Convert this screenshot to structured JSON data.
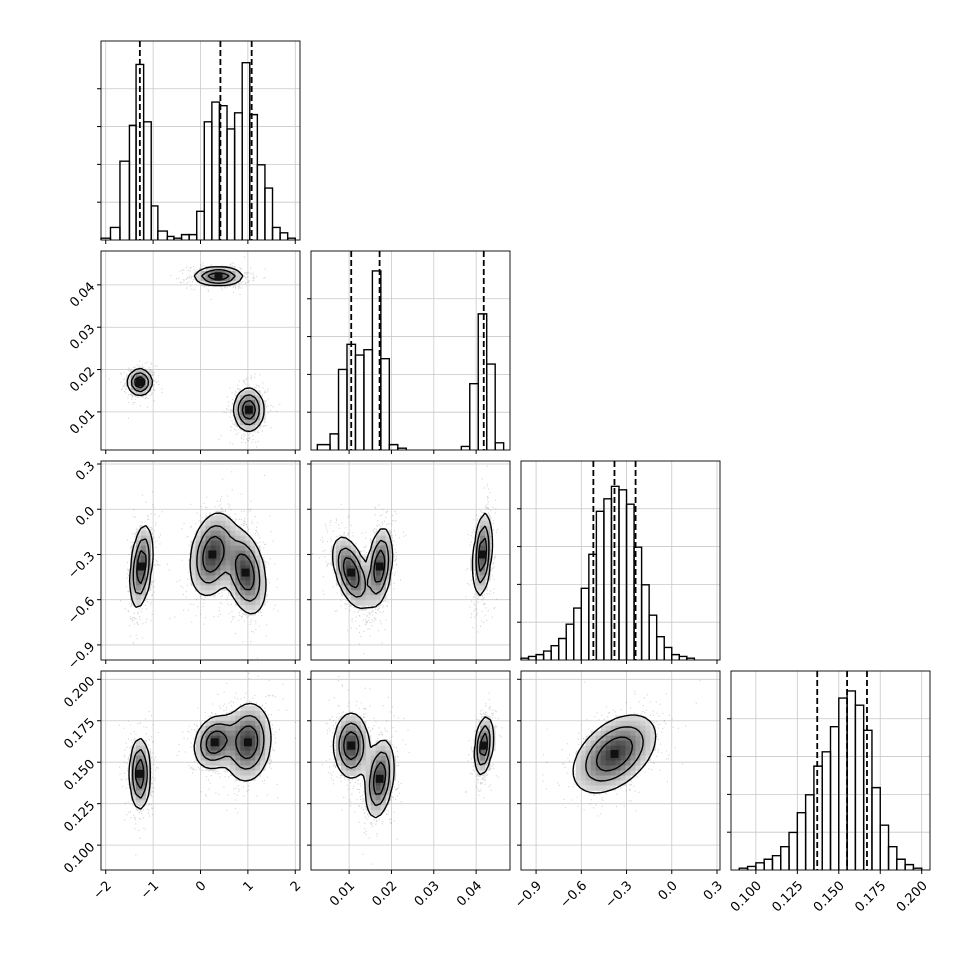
{
  "chart_data": {
    "type": "corner",
    "grid": true,
    "parameters": [
      {
        "id": "p1",
        "range": [
          -2.1,
          2.1
        ],
        "ticks": [
          -2,
          -1,
          0,
          1,
          2
        ],
        "tick_labels": [
          "−2",
          "−1",
          "0",
          "1",
          "2"
        ],
        "quantile_lines": [
          -1.28,
          0.42,
          1.08
        ],
        "hist": [
          {
            "x0": -2.1,
            "x1": -1.9,
            "v": 0.01
          },
          {
            "x0": -1.9,
            "x1": -1.7,
            "v": 0.07
          },
          {
            "x0": -1.7,
            "x1": -1.5,
            "v": 0.44
          },
          {
            "x0": -1.5,
            "x1": -1.36,
            "v": 0.64
          },
          {
            "x0": -1.36,
            "x1": -1.2,
            "v": 0.98
          },
          {
            "x0": -1.2,
            "x1": -1.04,
            "v": 0.66
          },
          {
            "x0": -1.04,
            "x1": -0.9,
            "v": 0.19
          },
          {
            "x0": -0.9,
            "x1": -0.7,
            "v": 0.05
          },
          {
            "x0": -0.7,
            "x1": -0.56,
            "v": 0.02
          },
          {
            "x0": -0.56,
            "x1": -0.4,
            "v": 0.01
          },
          {
            "x0": -0.4,
            "x1": -0.24,
            "v": 0.03
          },
          {
            "x0": -0.24,
            "x1": -0.08,
            "v": 0.03
          },
          {
            "x0": -0.08,
            "x1": 0.08,
            "v": 0.16
          },
          {
            "x0": 0.08,
            "x1": 0.24,
            "v": 0.66
          },
          {
            "x0": 0.24,
            "x1": 0.4,
            "v": 0.77
          },
          {
            "x0": 0.4,
            "x1": 0.56,
            "v": 0.75
          },
          {
            "x0": 0.56,
            "x1": 0.72,
            "v": 0.62
          },
          {
            "x0": 0.72,
            "x1": 0.88,
            "v": 0.71
          },
          {
            "x0": 0.88,
            "x1": 1.04,
            "v": 0.99
          },
          {
            "x0": 1.04,
            "x1": 1.2,
            "v": 0.7
          },
          {
            "x0": 1.2,
            "x1": 1.36,
            "v": 0.42
          },
          {
            "x0": 1.36,
            "x1": 1.52,
            "v": 0.29
          },
          {
            "x0": 1.52,
            "x1": 1.68,
            "v": 0.07
          },
          {
            "x0": 1.68,
            "x1": 1.84,
            "v": 0.04
          },
          {
            "x0": 1.84,
            "x1": 2.0,
            "v": 0.01
          }
        ]
      },
      {
        "id": "p2",
        "range": [
          0.001,
          0.048
        ],
        "ticks": [
          0.01,
          0.02,
          0.03,
          0.04
        ],
        "tick_labels": [
          "0.01",
          "0.02",
          "0.03",
          "0.04"
        ],
        "quantile_lines": [
          0.0105,
          0.0172,
          0.0418
        ],
        "hist": [
          {
            "x0": 0.0025,
            "x1": 0.0055,
            "v": 0.03
          },
          {
            "x0": 0.0055,
            "x1": 0.0075,
            "v": 0.09
          },
          {
            "x0": 0.0075,
            "x1": 0.0095,
            "v": 0.45
          },
          {
            "x0": 0.0095,
            "x1": 0.0115,
            "v": 0.59
          },
          {
            "x0": 0.0115,
            "x1": 0.0135,
            "v": 0.53
          },
          {
            "x0": 0.0135,
            "x1": 0.0155,
            "v": 0.56
          },
          {
            "x0": 0.0155,
            "x1": 0.0175,
            "v": 1.0
          },
          {
            "x0": 0.0175,
            "x1": 0.0195,
            "v": 0.51
          },
          {
            "x0": 0.0195,
            "x1": 0.0215,
            "v": 0.03
          },
          {
            "x0": 0.0215,
            "x1": 0.0235,
            "v": 0.01
          },
          {
            "x0": 0.0365,
            "x1": 0.0385,
            "v": 0.02
          },
          {
            "x0": 0.0385,
            "x1": 0.0405,
            "v": 0.37
          },
          {
            "x0": 0.0405,
            "x1": 0.0425,
            "v": 0.76
          },
          {
            "x0": 0.0425,
            "x1": 0.0445,
            "v": 0.48
          },
          {
            "x0": 0.0445,
            "x1": 0.0465,
            "v": 0.04
          }
        ]
      },
      {
        "id": "p3",
        "range": [
          -1.0,
          0.32
        ],
        "ticks": [
          -0.9,
          -0.6,
          -0.3,
          0.0,
          0.3
        ],
        "tick_labels": [
          "−0.9",
          "−0.6",
          "−0.3",
          "0.0",
          "0.3"
        ],
        "quantile_lines": [
          -0.52,
          -0.38,
          -0.24
        ],
        "hist": [
          {
            "x0": -1.0,
            "x1": -0.95,
            "v": 0.01
          },
          {
            "x0": -0.95,
            "x1": -0.9,
            "v": 0.02
          },
          {
            "x0": -0.9,
            "x1": -0.85,
            "v": 0.03
          },
          {
            "x0": -0.85,
            "x1": -0.8,
            "v": 0.05
          },
          {
            "x0": -0.8,
            "x1": -0.75,
            "v": 0.08
          },
          {
            "x0": -0.75,
            "x1": -0.7,
            "v": 0.12
          },
          {
            "x0": -0.7,
            "x1": -0.65,
            "v": 0.2
          },
          {
            "x0": -0.65,
            "x1": -0.6,
            "v": 0.29
          },
          {
            "x0": -0.6,
            "x1": -0.55,
            "v": 0.4
          },
          {
            "x0": -0.55,
            "x1": -0.5,
            "v": 0.59
          },
          {
            "x0": -0.5,
            "x1": -0.45,
            "v": 0.83
          },
          {
            "x0": -0.45,
            "x1": -0.4,
            "v": 0.9
          },
          {
            "x0": -0.4,
            "x1": -0.35,
            "v": 0.97
          },
          {
            "x0": -0.35,
            "x1": -0.3,
            "v": 0.95
          },
          {
            "x0": -0.3,
            "x1": -0.25,
            "v": 0.87
          },
          {
            "x0": -0.25,
            "x1": -0.2,
            "v": 0.63
          },
          {
            "x0": -0.2,
            "x1": -0.15,
            "v": 0.42
          },
          {
            "x0": -0.15,
            "x1": -0.1,
            "v": 0.25
          },
          {
            "x0": -0.1,
            "x1": -0.05,
            "v": 0.13
          },
          {
            "x0": -0.05,
            "x1": 0.0,
            "v": 0.07
          },
          {
            "x0": 0.0,
            "x1": 0.05,
            "v": 0.03
          },
          {
            "x0": 0.05,
            "x1": 0.1,
            "v": 0.02
          },
          {
            "x0": 0.1,
            "x1": 0.15,
            "v": 0.01
          }
        ]
      },
      {
        "id": "p4",
        "range": [
          0.085,
          0.205
        ],
        "ticks": [
          0.1,
          0.125,
          0.15,
          0.175,
          0.2
        ],
        "tick_labels": [
          "0.100",
          "0.125",
          "0.150",
          "0.175",
          "0.200"
        ],
        "quantile_lines": [
          0.137,
          0.155,
          0.167
        ],
        "hist": [
          {
            "x0": 0.09,
            "x1": 0.095,
            "v": 0.01
          },
          {
            "x0": 0.095,
            "x1": 0.1,
            "v": 0.02
          },
          {
            "x0": 0.1,
            "x1": 0.105,
            "v": 0.04
          },
          {
            "x0": 0.105,
            "x1": 0.11,
            "v": 0.06
          },
          {
            "x0": 0.11,
            "x1": 0.115,
            "v": 0.08
          },
          {
            "x0": 0.115,
            "x1": 0.12,
            "v": 0.13
          },
          {
            "x0": 0.12,
            "x1": 0.125,
            "v": 0.21
          },
          {
            "x0": 0.125,
            "x1": 0.13,
            "v": 0.32
          },
          {
            "x0": 0.13,
            "x1": 0.135,
            "v": 0.42
          },
          {
            "x0": 0.135,
            "x1": 0.14,
            "v": 0.58
          },
          {
            "x0": 0.14,
            "x1": 0.145,
            "v": 0.66
          },
          {
            "x0": 0.145,
            "x1": 0.15,
            "v": 0.8
          },
          {
            "x0": 0.15,
            "x1": 0.155,
            "v": 0.96
          },
          {
            "x0": 0.155,
            "x1": 0.16,
            "v": 1.0
          },
          {
            "x0": 0.16,
            "x1": 0.165,
            "v": 0.92
          },
          {
            "x0": 0.165,
            "x1": 0.17,
            "v": 0.78
          },
          {
            "x0": 0.17,
            "x1": 0.175,
            "v": 0.46
          },
          {
            "x0": 0.175,
            "x1": 0.18,
            "v": 0.25
          },
          {
            "x0": 0.18,
            "x1": 0.185,
            "v": 0.13
          },
          {
            "x0": 0.185,
            "x1": 0.19,
            "v": 0.06
          },
          {
            "x0": 0.19,
            "x1": 0.195,
            "v": 0.03
          },
          {
            "x0": 0.195,
            "x1": 0.2,
            "v": 0.01
          }
        ]
      }
    ],
    "pairs": [
      {
        "row": 1,
        "col": 0,
        "blobs": [
          {
            "cx": -1.28,
            "cy": 0.017,
            "sx": 0.13,
            "sy": 0.0016,
            "rho": 0.0,
            "w": 1.0
          },
          {
            "cx": 0.38,
            "cy": 0.042,
            "sx": 0.26,
            "sy": 0.0011,
            "rho": 0.0,
            "w": 1.0
          },
          {
            "cx": 1.02,
            "cy": 0.0105,
            "sx": 0.16,
            "sy": 0.0026,
            "rho": 0.0,
            "w": 1.0
          }
        ]
      },
      {
        "row": 2,
        "col": 0,
        "blobs": [
          {
            "cx": -1.25,
            "cy": -0.38,
            "sx": 0.12,
            "sy": 0.14,
            "rho": 0.35,
            "w": 1.0
          },
          {
            "cx": 0.25,
            "cy": -0.3,
            "sx": 0.24,
            "sy": 0.14,
            "rho": 0.25,
            "w": 1.0
          },
          {
            "cx": 0.95,
            "cy": -0.42,
            "sx": 0.22,
            "sy": 0.14,
            "rho": -0.3,
            "w": 1.0
          }
        ]
      },
      {
        "row": 2,
        "col": 1,
        "blobs": [
          {
            "cx": 0.0105,
            "cy": -0.42,
            "sx": 0.0022,
            "sy": 0.12,
            "rho": -0.5,
            "w": 1.0
          },
          {
            "cx": 0.0172,
            "cy": -0.38,
            "sx": 0.0015,
            "sy": 0.13,
            "rho": 0.3,
            "w": 1.0
          },
          {
            "cx": 0.0415,
            "cy": -0.3,
            "sx": 0.0011,
            "sy": 0.14,
            "rho": 0.3,
            "w": 1.0
          }
        ]
      },
      {
        "row": 3,
        "col": 0,
        "blobs": [
          {
            "cx": -1.28,
            "cy": 0.143,
            "sx": 0.11,
            "sy": 0.011,
            "rho": 0.0,
            "w": 1.0
          },
          {
            "cx": 0.3,
            "cy": 0.162,
            "sx": 0.22,
            "sy": 0.008,
            "rho": 0.2,
            "w": 1.0
          },
          {
            "cx": 1.0,
            "cy": 0.162,
            "sx": 0.25,
            "sy": 0.012,
            "rho": 0.1,
            "w": 1.0
          }
        ]
      },
      {
        "row": 3,
        "col": 1,
        "blobs": [
          {
            "cx": 0.0105,
            "cy": 0.16,
            "sx": 0.0021,
            "sy": 0.01,
            "rho": 0.0,
            "w": 1.0
          },
          {
            "cx": 0.0172,
            "cy": 0.14,
            "sx": 0.0017,
            "sy": 0.012,
            "rho": 0.3,
            "w": 1.0
          },
          {
            "cx": 0.0418,
            "cy": 0.16,
            "sx": 0.0011,
            "sy": 0.009,
            "rho": 0.3,
            "w": 1.0
          }
        ]
      },
      {
        "row": 3,
        "col": 2,
        "blobs": [
          {
            "cx": -0.38,
            "cy": 0.155,
            "sx": 0.14,
            "sy": 0.012,
            "rho": 0.45,
            "w": 1.0
          }
        ]
      }
    ]
  }
}
